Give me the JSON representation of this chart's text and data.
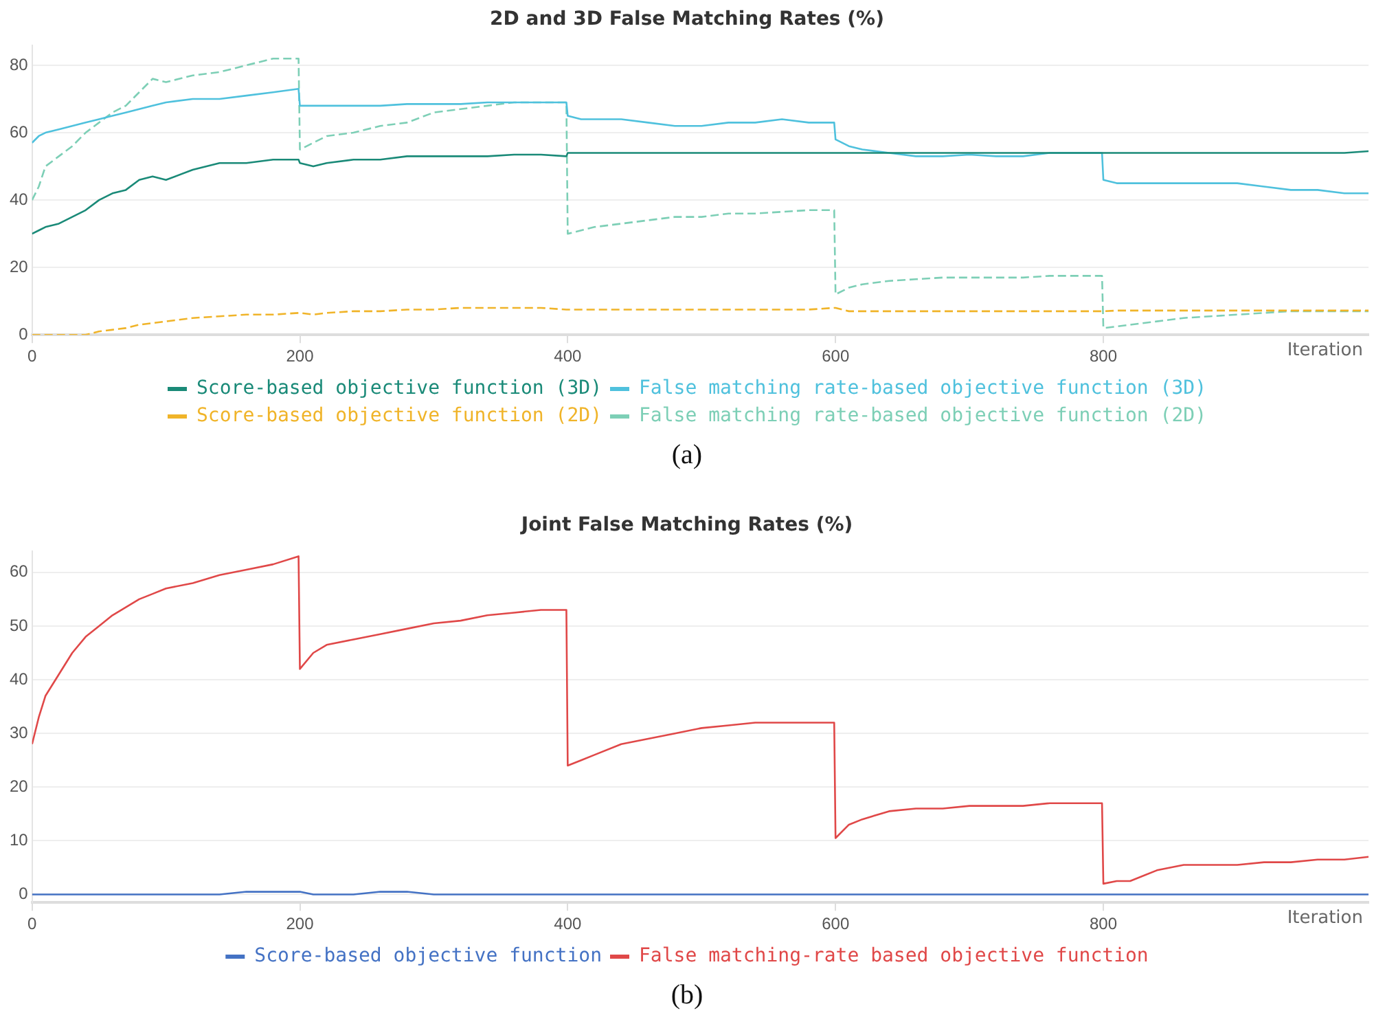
{
  "chart_data": [
    {
      "type": "line",
      "title": "2D and 3D False Matching Rates (%)",
      "xlabel": "Iteration",
      "annotations": [
        "(a)"
      ],
      "legend": "bottom",
      "grid": "y",
      "marker": "none",
      "xlim": [
        0,
        998
      ],
      "xticks": [
        0,
        200,
        400,
        600,
        800
      ],
      "ylim": [
        0,
        86
      ],
      "yticks": [
        0,
        20,
        40,
        60,
        80
      ],
      "x": [
        0,
        5,
        10,
        20,
        30,
        40,
        50,
        60,
        70,
        80,
        90,
        100,
        120,
        140,
        160,
        180,
        199,
        200,
        210,
        220,
        240,
        260,
        280,
        300,
        320,
        340,
        360,
        380,
        399,
        400,
        410,
        420,
        440,
        460,
        480,
        500,
        520,
        540,
        560,
        580,
        599,
        600,
        610,
        620,
        640,
        660,
        680,
        700,
        720,
        740,
        760,
        780,
        799,
        800,
        810,
        820,
        840,
        860,
        880,
        900,
        920,
        940,
        960,
        980,
        998
      ],
      "series": [
        {
          "name": "Score-based objective function (3D)",
          "color": "#1a8a78",
          "line_style": "solid",
          "values": [
            30,
            31,
            32,
            33,
            35,
            37,
            40,
            42,
            43,
            46,
            47,
            46,
            49,
            51,
            51,
            52,
            52,
            51,
            50,
            51,
            52,
            52,
            53,
            53,
            53,
            53,
            53.5,
            53.5,
            53,
            54,
            54,
            54,
            54,
            54,
            54,
            54,
            54,
            54,
            54,
            54,
            54,
            54,
            54,
            54,
            54,
            54,
            54,
            54,
            54,
            54,
            54,
            54,
            54,
            54,
            54,
            54,
            54,
            54,
            54,
            54,
            54,
            54,
            54,
            54,
            54.5
          ]
        },
        {
          "name": "False matching rate-based objective function (3D)",
          "color": "#4fc1dd",
          "line_style": "solid",
          "values": [
            57,
            59,
            60,
            61,
            62,
            63,
            64,
            65,
            66,
            67,
            68,
            69,
            70,
            70,
            71,
            72,
            73,
            68,
            68,
            68,
            68,
            68,
            68.5,
            68.5,
            68.5,
            69,
            69,
            69,
            69,
            65,
            64,
            64,
            64,
            63,
            62,
            62,
            63,
            63,
            64,
            63,
            63,
            58,
            56,
            55,
            54,
            53,
            53,
            53.5,
            53,
            53,
            54,
            54,
            54,
            46,
            45,
            45,
            45,
            45,
            45,
            45,
            44,
            43,
            43,
            42,
            42
          ]
        },
        {
          "name": "Score-based objective function (2D)",
          "color": "#f0b429",
          "line_style": "dashed",
          "values": [
            0,
            0,
            0,
            0,
            0,
            0,
            1,
            1.5,
            2,
            3,
            3.5,
            4,
            5,
            5.5,
            6,
            6,
            6.5,
            6.5,
            6,
            6.5,
            7,
            7,
            7.5,
            7.5,
            8,
            8,
            8,
            8,
            7.5,
            7.5,
            7.5,
            7.5,
            7.5,
            7.5,
            7.5,
            7.5,
            7.5,
            7.5,
            7.5,
            7.5,
            8,
            8,
            7,
            7,
            7,
            7,
            7,
            7,
            7,
            7,
            7,
            7,
            7,
            7,
            7.2,
            7.2,
            7.2,
            7.2,
            7.2,
            7.2,
            7.2,
            7.2,
            7.2,
            7.2,
            7.2
          ]
        },
        {
          "name": "False matching rate-based objective function (2D)",
          "color": "#7dcfb6",
          "line_style": "dashed",
          "values": [
            40,
            44,
            50,
            53,
            56,
            60,
            63,
            66,
            68,
            72,
            76,
            75,
            77,
            78,
            80,
            82,
            82,
            55,
            57,
            59,
            60,
            62,
            63,
            66,
            67,
            68,
            69,
            69,
            69,
            30,
            31,
            32,
            33,
            34,
            35,
            35,
            36,
            36,
            36.5,
            37,
            37,
            12,
            14,
            15,
            16,
            16.5,
            17,
            17,
            17,
            17,
            17.5,
            17.5,
            17.5,
            2,
            2.5,
            3,
            4,
            5,
            5.5,
            6,
            6.5,
            7,
            7,
            7,
            7
          ]
        }
      ]
    },
    {
      "type": "line",
      "title": "Joint False Matching Rates (%)",
      "xlabel": "Iteration",
      "annotations": [
        "(b)"
      ],
      "legend": "bottom",
      "grid": "y",
      "marker": "none",
      "xlim": [
        0,
        998
      ],
      "xticks": [
        0,
        200,
        400,
        600,
        800
      ],
      "ylim": [
        -1.5,
        64
      ],
      "yticks": [
        0,
        10,
        20,
        30,
        40,
        50,
        60
      ],
      "x": [
        0,
        5,
        10,
        20,
        30,
        40,
        50,
        60,
        70,
        80,
        90,
        100,
        120,
        140,
        160,
        180,
        199,
        200,
        210,
        220,
        240,
        260,
        280,
        300,
        320,
        340,
        360,
        380,
        399,
        400,
        410,
        420,
        440,
        460,
        480,
        500,
        520,
        540,
        560,
        580,
        599,
        600,
        610,
        620,
        640,
        660,
        680,
        700,
        720,
        740,
        760,
        780,
        799,
        800,
        810,
        820,
        840,
        860,
        880,
        900,
        920,
        940,
        960,
        980,
        998
      ],
      "series": [
        {
          "name": "Score-based objective function",
          "color": "#4472c4",
          "line_style": "solid",
          "values": [
            0,
            0,
            0,
            0,
            0,
            0,
            0,
            0,
            0,
            0,
            0,
            0,
            0,
            0,
            0.5,
            0.5,
            0.5,
            0.5,
            0,
            0,
            0,
            0.5,
            0.5,
            0,
            0,
            0,
            0,
            0,
            0,
            0,
            0,
            0,
            0,
            0,
            0,
            0,
            0,
            0,
            0,
            0,
            0,
            0,
            0,
            0,
            0,
            0,
            0,
            0,
            0,
            0,
            0,
            0,
            0,
            0,
            0,
            0,
            0,
            0,
            0,
            0,
            0,
            0,
            0,
            0,
            0
          ]
        },
        {
          "name": "False matching-rate based objective function",
          "color": "#e04848",
          "line_style": "solid",
          "values": [
            28,
            33,
            37,
            41,
            45,
            48,
            50,
            52,
            53.5,
            55,
            56,
            57,
            58,
            59.5,
            60.5,
            61.5,
            63,
            42,
            45,
            46.5,
            47.5,
            48.5,
            49.5,
            50.5,
            51,
            52,
            52.5,
            53,
            53,
            24,
            25,
            26,
            28,
            29,
            30,
            31,
            31.5,
            32,
            32,
            32,
            32,
            10.5,
            13,
            14,
            15.5,
            16,
            16,
            16.5,
            16.5,
            16.5,
            17,
            17,
            17,
            2,
            2.5,
            2.5,
            4.5,
            5.5,
            5.5,
            5.5,
            6,
            6,
            6.5,
            6.5,
            7
          ]
        }
      ]
    }
  ]
}
